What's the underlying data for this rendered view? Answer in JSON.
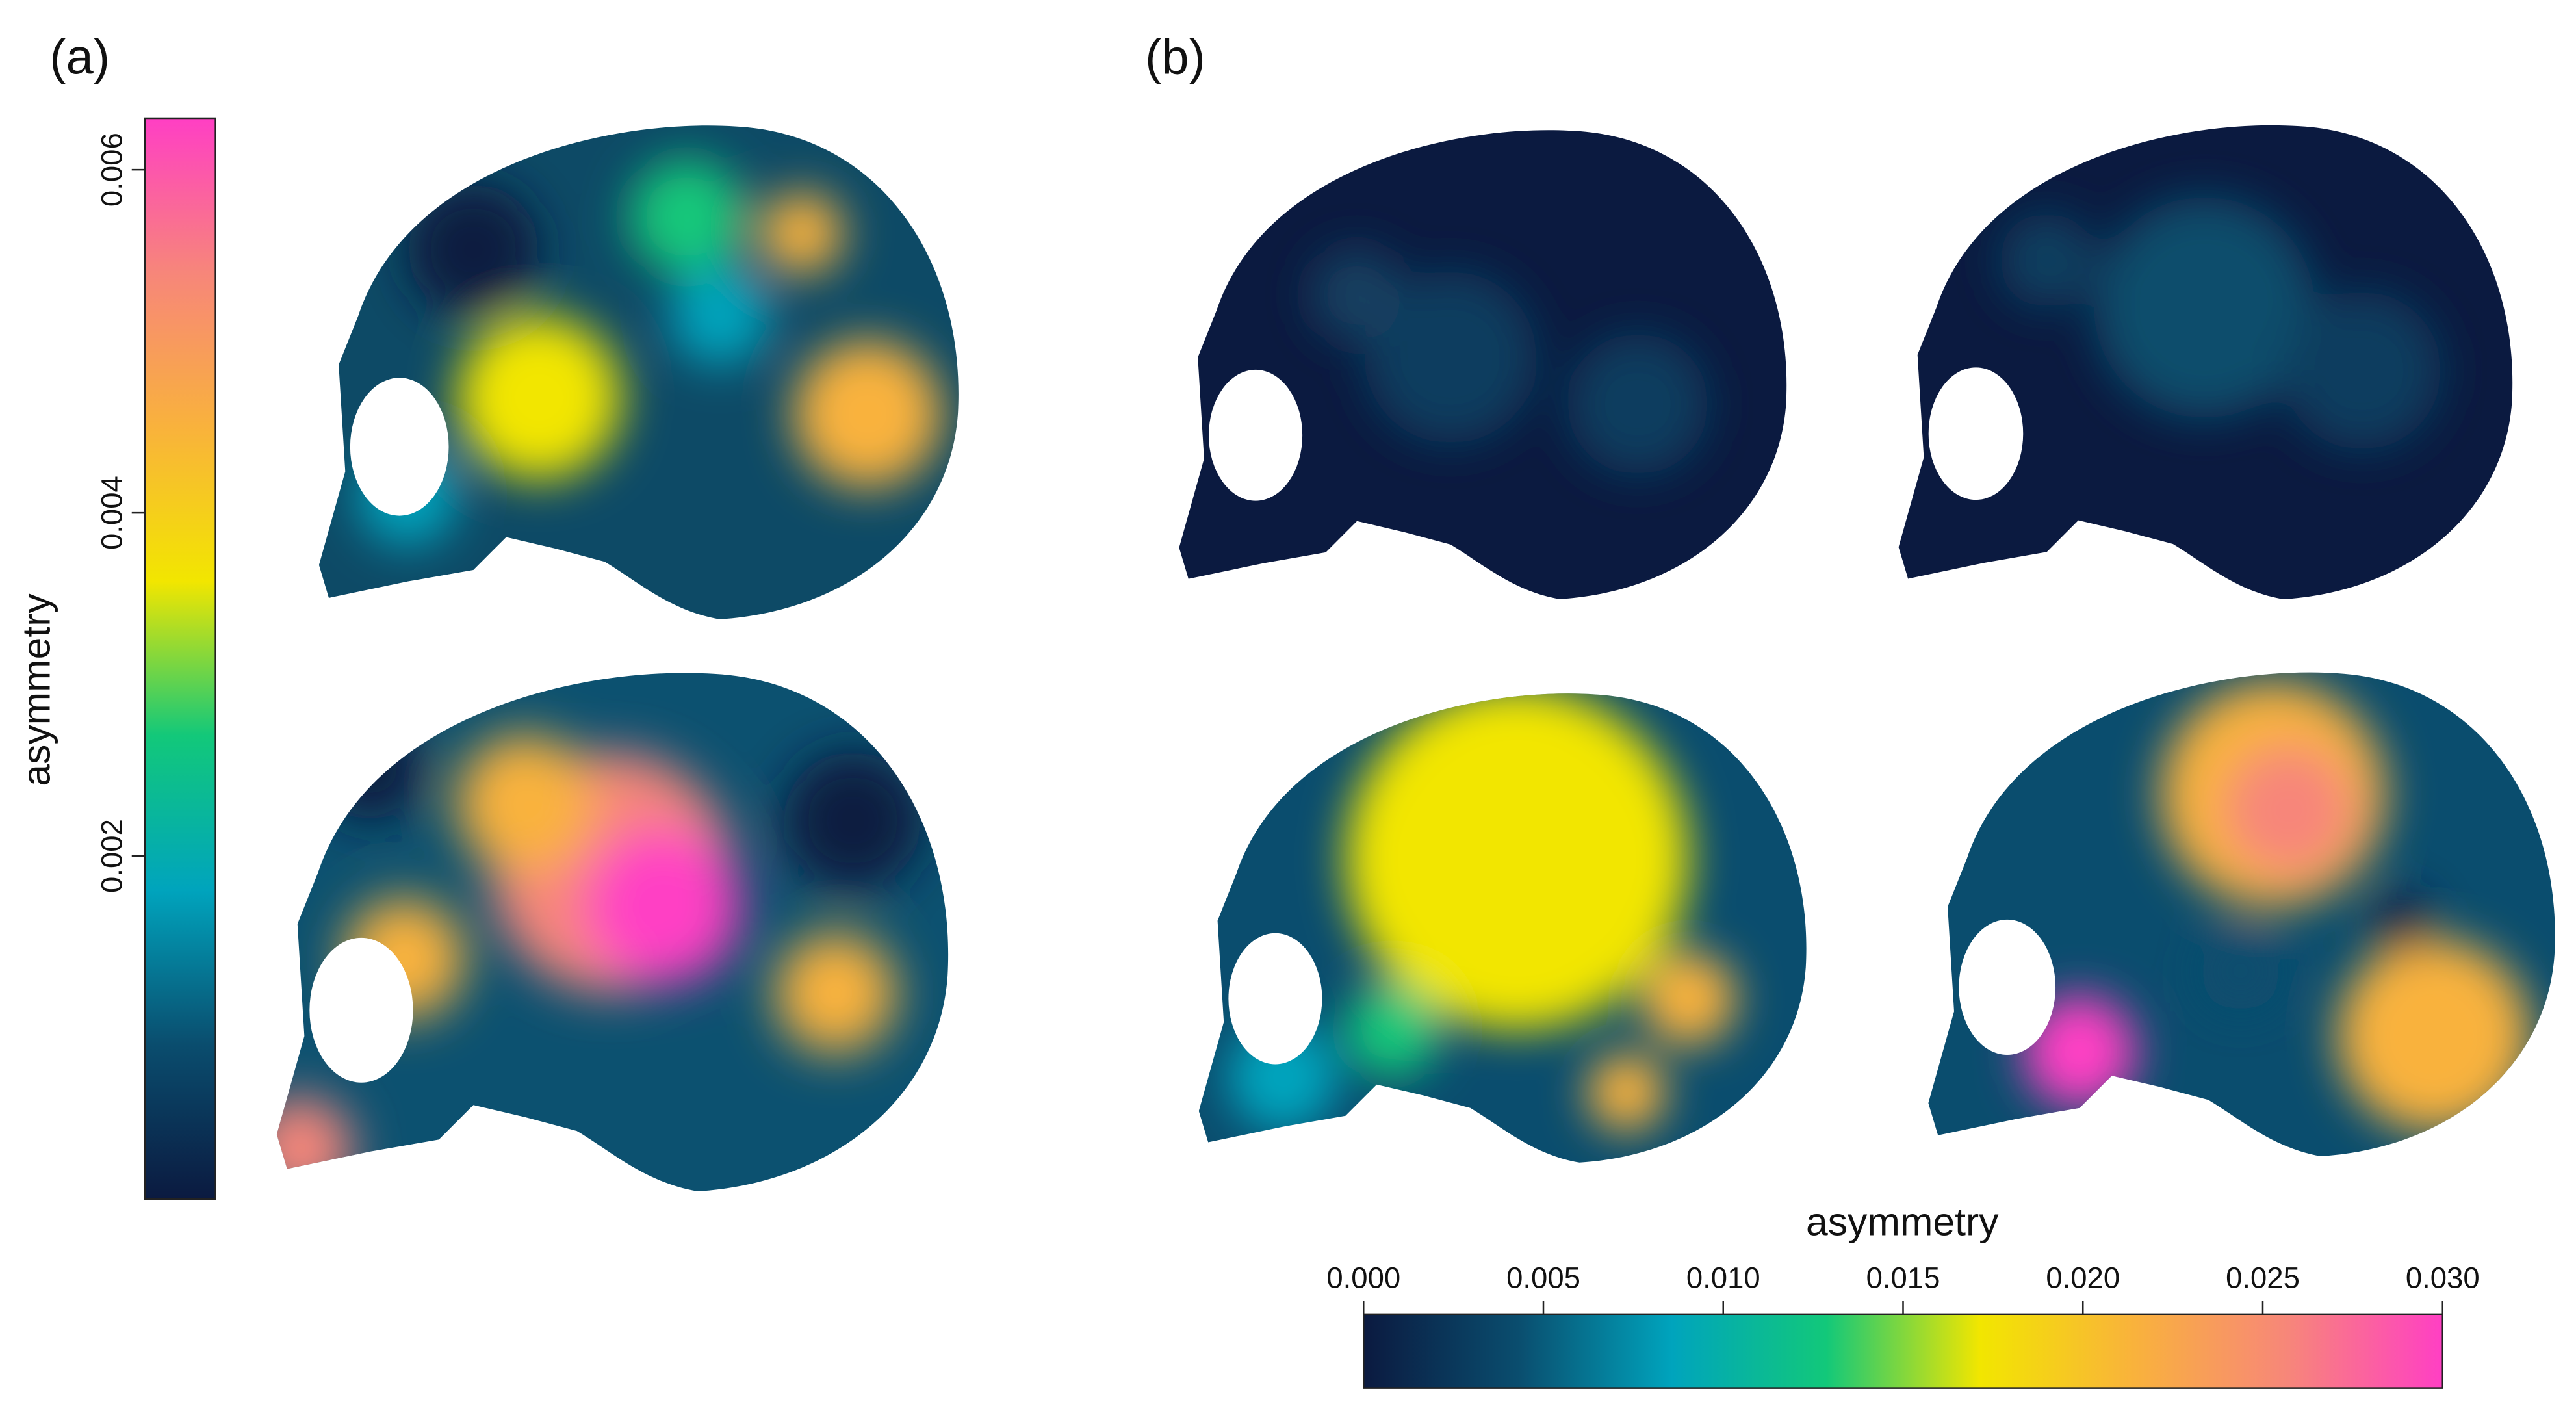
{
  "panels": [
    {
      "label": "(a)",
      "colorbar": {
        "title": "asymmetry",
        "lim": [
          0,
          0.0063
        ],
        "ticks": [
          0.002,
          0.004,
          0.006
        ]
      }
    },
    {
      "label": "(b)",
      "colorbar": {
        "title": "asymmetry",
        "lim": [
          0,
          0.03
        ],
        "ticks": [
          {
            "value": 0,
            "label": "0.000"
          },
          0.005,
          {
            "value": 0.01,
            "label": "0.010"
          },
          0.015,
          {
            "value": 0.02,
            "label": "0.020"
          },
          0.025,
          {
            "value": 0.03,
            "label": "0.030"
          }
        ]
      }
    }
  ],
  "colormap": [
    "#0b1a40",
    "#0a4d6e",
    "#00a4bd",
    "#12c87a",
    "#f2e600",
    "#f9b23c",
    "#f7867a",
    "#ff3fc4"
  ]
}
